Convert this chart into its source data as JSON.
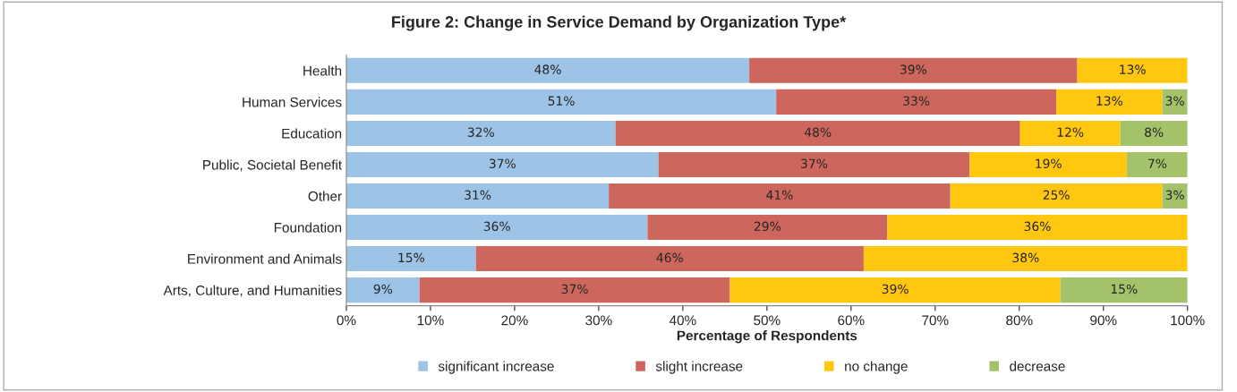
{
  "chart_data": {
    "type": "bar",
    "orientation": "horizontal",
    "stacked": true,
    "title": "Figure 2: Change in Service Demand by Organization Type*",
    "xlabel": "Percentage of Respondents",
    "categories": [
      "Health",
      "Human Services",
      "Education",
      "Public, Societal Benefit",
      "Other",
      "Foundation",
      "Environment and Animals",
      "Arts, Culture, and Humanities"
    ],
    "series": [
      {
        "name": "significant increase",
        "color": "#9dc3e6",
        "values": [
          47.9,
          51.1,
          32,
          37.1,
          31.2,
          35.8,
          15.4,
          8.7
        ],
        "value_labels": [
          "48%",
          "51%",
          "32%",
          "37%",
          "31%",
          "36%",
          "15%",
          "9%"
        ]
      },
      {
        "name": "slight increase",
        "color": "#cd665c",
        "values": [
          39,
          33.3,
          48.1,
          37,
          40.6,
          28.5,
          46.1,
          36.9
        ],
        "value_labels": [
          "39%",
          "33%",
          "48%",
          "37%",
          "41%",
          "29%",
          "46%",
          "37%"
        ]
      },
      {
        "name": "no change",
        "color": "#ffc70f",
        "values": [
          13.1,
          12.6,
          11.9,
          18.7,
          25.2,
          35.7,
          38.5,
          39.3
        ],
        "value_labels": [
          "13%",
          "13%",
          "12%",
          "19%",
          "25%",
          "36%",
          "38%",
          "39%"
        ]
      },
      {
        "name": "decrease",
        "color": "#a4c26a",
        "values": [
          null,
          3,
          8,
          7.2,
          3,
          null,
          null,
          15.1
        ],
        "value_labels": [
          null,
          "3%",
          "8%",
          "7%",
          "3%",
          null,
          null,
          "15%"
        ]
      }
    ],
    "xlim": [
      0,
      100
    ],
    "xticks": [
      {
        "value": 0,
        "label": "0%"
      },
      {
        "value": 10,
        "label": "10%"
      },
      {
        "value": 20,
        "label": "20%"
      },
      {
        "value": 30,
        "label": "30%"
      },
      {
        "value": 40,
        "label": "40%"
      },
      {
        "value": 50,
        "label": "50%"
      },
      {
        "value": 60,
        "label": "60%"
      },
      {
        "value": 70,
        "label": "70%"
      },
      {
        "value": 80,
        "label": "80%"
      },
      {
        "value": 90,
        "label": "90%"
      },
      {
        "value": 100,
        "label": "100%"
      }
    ],
    "legend": "bottom",
    "grid": false
  }
}
